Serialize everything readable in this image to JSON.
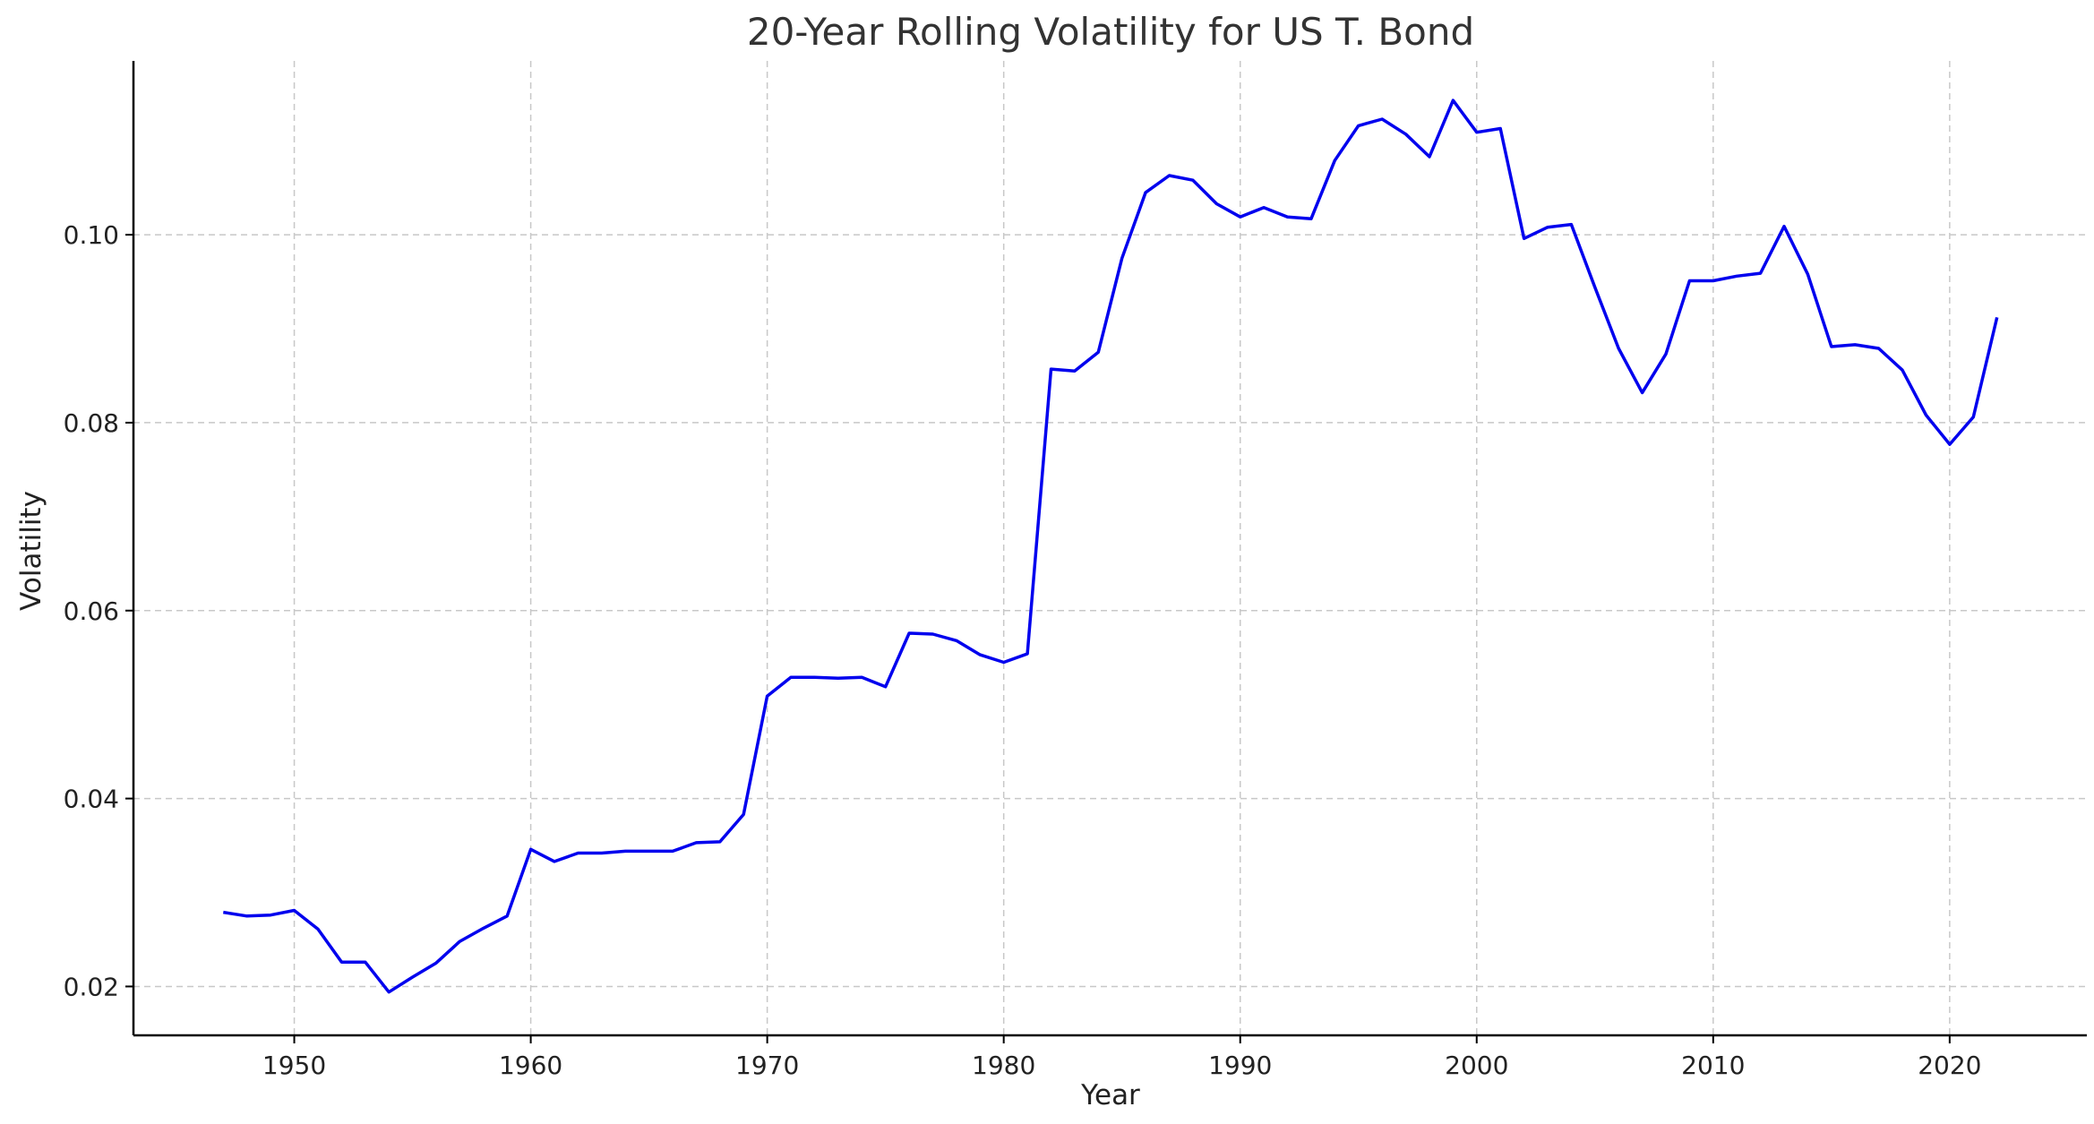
{
  "chart_data": {
    "type": "line",
    "title": "20-Year Rolling Volatility for US T. Bond",
    "xlabel": "Year",
    "ylabel": "Volatility",
    "xlim": [
      1943.2,
      2025.8
    ],
    "ylim": [
      0.0148,
      0.1185
    ],
    "xticks": [
      1950,
      1960,
      1970,
      1980,
      1990,
      2000,
      2010,
      2020
    ],
    "yticks": [
      0.02,
      0.04,
      0.06,
      0.08,
      0.1
    ],
    "ytick_labels": [
      "0.02",
      "0.04",
      "0.06",
      "0.08",
      "0.10"
    ],
    "grid": true,
    "series": [
      {
        "color": "#0000ee",
        "x": [
          1947,
          1948,
          1949,
          1950,
          1951,
          1952,
          1953,
          1954,
          1955,
          1956,
          1957,
          1958,
          1959,
          1960,
          1961,
          1962,
          1963,
          1964,
          1965,
          1966,
          1967,
          1968,
          1969,
          1970,
          1971,
          1972,
          1973,
          1974,
          1975,
          1976,
          1977,
          1978,
          1979,
          1980,
          1981,
          1982,
          1983,
          1984,
          1985,
          1986,
          1987,
          1988,
          1989,
          1990,
          1991,
          1992,
          1993,
          1994,
          1995,
          1996,
          1997,
          1998,
          1999,
          2000,
          2001,
          2002,
          2003,
          2004,
          2005,
          2006,
          2007,
          2008,
          2009,
          2010,
          2011,
          2012,
          2013,
          2014,
          2015,
          2016,
          2017,
          2018,
          2019,
          2020,
          2021,
          2022
        ],
        "y": [
          0.0279,
          0.0275,
          0.0276,
          0.0281,
          0.0261,
          0.0226,
          0.0226,
          0.0194,
          0.021,
          0.0225,
          0.0248,
          0.0262,
          0.0275,
          0.0346,
          0.0333,
          0.0342,
          0.0342,
          0.0344,
          0.0344,
          0.0344,
          0.0353,
          0.0354,
          0.0383,
          0.0509,
          0.0529,
          0.0529,
          0.0528,
          0.0529,
          0.0519,
          0.0576,
          0.0575,
          0.0568,
          0.0553,
          0.0545,
          0.0554,
          0.0857,
          0.0855,
          0.0875,
          0.0975,
          0.1045,
          0.1063,
          0.1058,
          0.1033,
          0.1019,
          0.1029,
          0.1019,
          0.1017,
          0.1079,
          0.1116,
          0.1123,
          0.1107,
          0.1083,
          0.1143,
          0.1109,
          0.1113,
          0.0996,
          0.1008,
          0.1011,
          0.0944,
          0.0879,
          0.0832,
          0.0873,
          0.0951,
          0.0951,
          0.0956,
          0.0959,
          0.1009,
          0.0958,
          0.0881,
          0.0883,
          0.0879,
          0.0856,
          0.0808,
          0.0777,
          0.0806,
          0.0912
        ]
      }
    ]
  }
}
